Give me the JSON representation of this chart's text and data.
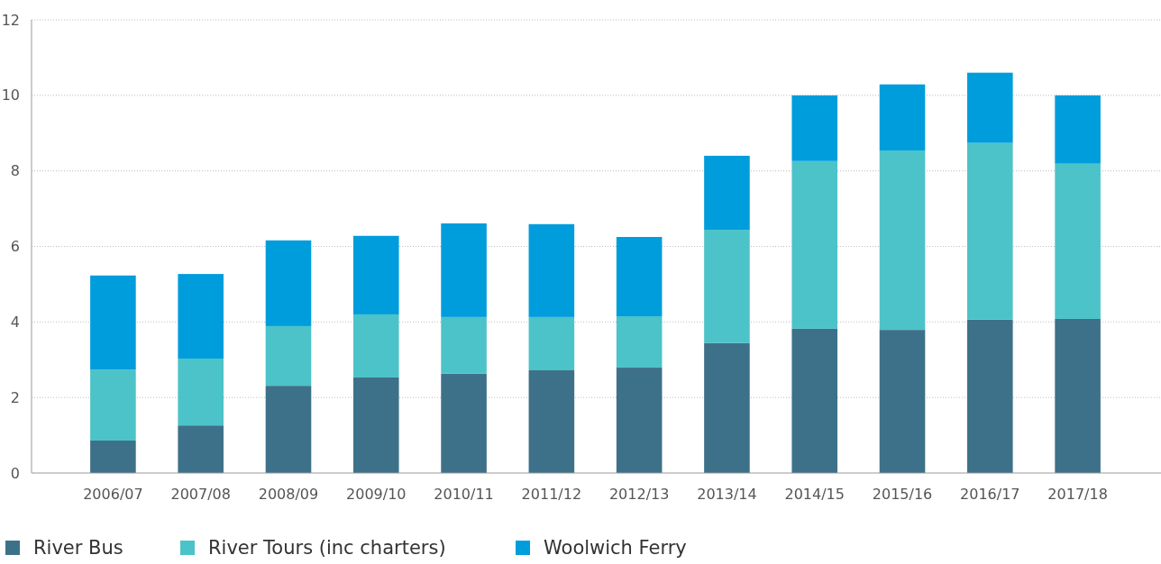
{
  "chart_data": {
    "type": "bar",
    "stacked": true,
    "categories": [
      "2006/07",
      "2007/08",
      "2008/09",
      "2009/10",
      "2010/11",
      "2011/12",
      "2012/13",
      "2013/14",
      "2014/15",
      "2015/16",
      "2016/17",
      "2017/18"
    ],
    "series": [
      {
        "name": "River Bus",
        "color": "#3d7189",
        "values": [
          0.86,
          1.26,
          2.31,
          2.53,
          2.63,
          2.72,
          2.79,
          3.44,
          3.82,
          3.79,
          4.06,
          4.08
        ]
      },
      {
        "name": "River Tours (inc charters)",
        "color": "#4cc3c8",
        "values": [
          1.88,
          1.77,
          1.58,
          1.67,
          1.5,
          1.41,
          1.36,
          3.0,
          4.44,
          4.75,
          4.68,
          4.11
        ]
      },
      {
        "name": "Woolwich Ferry",
        "color": "#009ddc",
        "values": [
          2.49,
          2.24,
          2.27,
          2.08,
          2.48,
          2.46,
          2.1,
          1.96,
          1.74,
          1.75,
          1.86,
          1.81
        ]
      }
    ],
    "ylim": [
      0,
      12
    ],
    "yticks": [
      0,
      2,
      4,
      6,
      8,
      10,
      12
    ],
    "grid": "y",
    "legend": "bottom left"
  }
}
